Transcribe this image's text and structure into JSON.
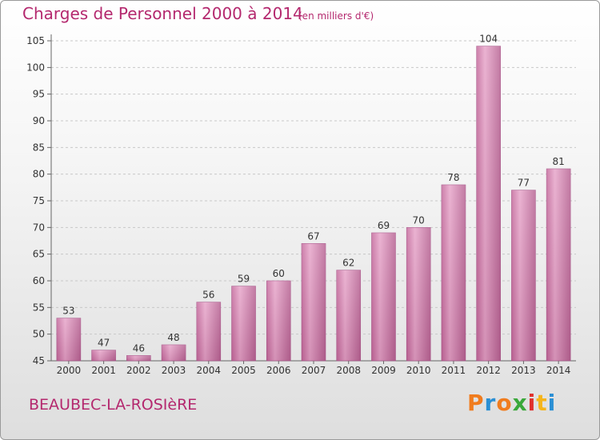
{
  "header": {
    "title": "Charges de Personnel 2000 à 2014",
    "subtitle": "(en milliers d'€)"
  },
  "footer": {
    "town": "BEAUBEC-LA-ROSIèRE",
    "logo_letters": [
      "P",
      "r",
      "o",
      "x",
      "i",
      "t",
      "i"
    ],
    "logo_colors": [
      "#f07c1e",
      "#2a8fd4",
      "#f07c1e",
      "#3aa83a",
      "#e0302c",
      "#f5b51b",
      "#2a8fd4"
    ]
  },
  "chart_data": {
    "type": "bar",
    "title": "Charges de Personnel 2000 à 2014",
    "categories": [
      "2000",
      "2001",
      "2002",
      "2003",
      "2004",
      "2005",
      "2006",
      "2007",
      "2008",
      "2009",
      "2010",
      "2011",
      "2012",
      "2013",
      "2014"
    ],
    "values": [
      53,
      47,
      46,
      48,
      56,
      59,
      60,
      67,
      62,
      69,
      70,
      78,
      104,
      77,
      81
    ],
    "ylim": [
      45,
      105
    ],
    "yticks": [
      45,
      50,
      55,
      60,
      65,
      70,
      75,
      80,
      85,
      90,
      95,
      100,
      105
    ],
    "grid": true,
    "bar_color": "#d98fb8",
    "text_color": "#b4286e"
  }
}
